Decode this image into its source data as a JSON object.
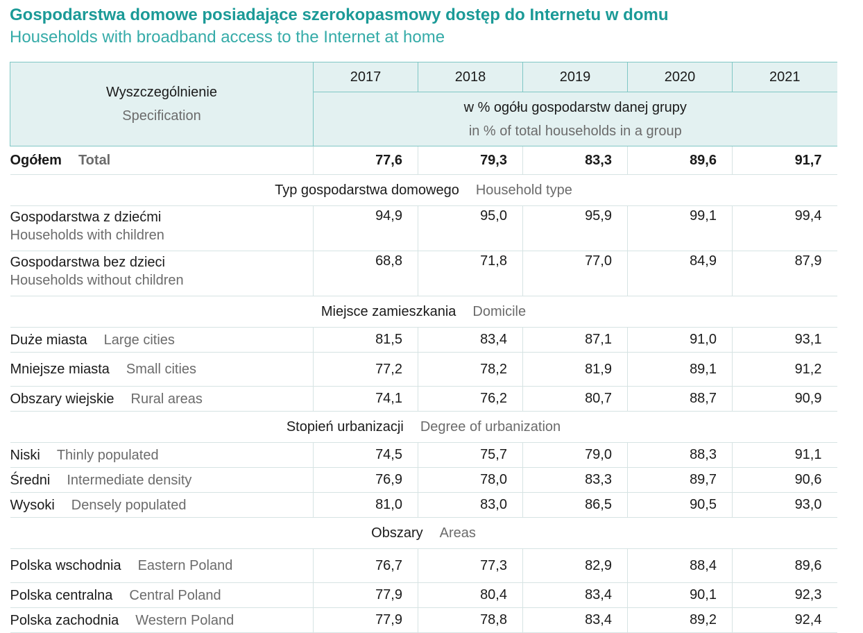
{
  "title": {
    "pl": "Gospodarstwa domowe posiadające szerokopasmowy dostęp do Internetu w domu",
    "en": "Households with broadband access to the Internet at home"
  },
  "header": {
    "spec_pl": "Wyszczególnienie",
    "spec_en": "Specification",
    "years": [
      "2017",
      "2018",
      "2019",
      "2020",
      "2021"
    ],
    "unit_pl": "w % ogółu gospodarstw danej grupy",
    "unit_en": "in % of total households in a group"
  },
  "total": {
    "pl": "Ogółem",
    "en": "Total",
    "values": [
      "77,6",
      "79,3",
      "83,3",
      "89,6",
      "91,7"
    ]
  },
  "sections": [
    {
      "pl": "Typ gospodarstwa domowego",
      "en": "Household type",
      "rows": [
        {
          "pl": "Gospodarstwa z dziećmi",
          "en": "Households with children",
          "values": [
            "94,9",
            "95,0",
            "95,9",
            "99,1",
            "99,4"
          ]
        },
        {
          "pl": "Gospodarstwa bez dzieci",
          "en": "Households without children",
          "values": [
            "68,8",
            "71,8",
            "77,0",
            "84,9",
            "87,9"
          ]
        }
      ]
    },
    {
      "pl": "Miejsce zamieszkania",
      "en": "Domicile",
      "rows": [
        {
          "pl": "Duże miasta",
          "en": "Large cities",
          "values": [
            "81,5",
            "83,4",
            "87,1",
            "91,0",
            "93,1"
          ]
        },
        {
          "pl": "Mniejsze miasta",
          "en": "Small cities",
          "values": [
            "77,2",
            "78,2",
            "81,9",
            "89,1",
            "91,2"
          ]
        },
        {
          "pl": "Obszary wiejskie",
          "en": "Rural areas",
          "values": [
            "74,1",
            "76,2",
            "80,7",
            "88,7",
            "90,9"
          ]
        }
      ]
    },
    {
      "pl": "Stopień urbanizacji",
      "en": "Degree of urbanization",
      "rows": [
        {
          "pl": "Niski",
          "en": "Thinly populated",
          "values": [
            "74,5",
            "75,7",
            "79,0",
            "88,3",
            "91,1"
          ]
        },
        {
          "pl": "Średni",
          "en": "Intermediate density",
          "values": [
            "76,9",
            "78,0",
            "83,3",
            "89,7",
            "90,6"
          ]
        },
        {
          "pl": "Wysoki",
          "en": "Densely populated",
          "values": [
            "81,0",
            "83,0",
            "86,5",
            "90,5",
            "93,0"
          ]
        }
      ]
    },
    {
      "pl": "Obszary",
      "en": "Areas",
      "rows": [
        {
          "pl": "Polska wschodnia",
          "en": "Eastern Poland",
          "values": [
            "76,7",
            "77,3",
            "82,9",
            "88,4",
            "89,6"
          ]
        },
        {
          "pl": "Polska centralna",
          "en": "Central Poland",
          "values": [
            "77,9",
            "80,4",
            "83,4",
            "90,1",
            "92,3"
          ]
        },
        {
          "pl": "Polska zachodnia",
          "en": "Western Poland",
          "values": [
            "77,9",
            "78,8",
            "83,4",
            "89,2",
            "92,4"
          ]
        }
      ]
    }
  ]
}
